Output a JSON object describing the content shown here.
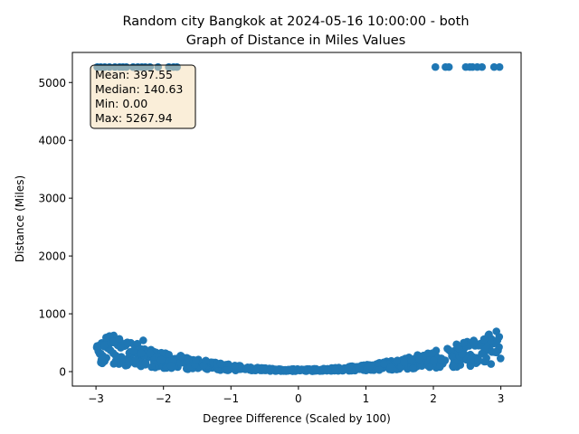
{
  "chart_data": {
    "type": "scatter",
    "title_line1": "Random city Bangkok at 2024-05-16 10:00:00  - both",
    "title_line2": "Graph of Distance in Miles Values",
    "xlabel": "Degree Difference (Scaled by 100)",
    "ylabel": "Distance (Miles)",
    "xlim": [
      -3.35,
      3.3
    ],
    "ylim": [
      -250,
      5520
    ],
    "xticks": [
      -3,
      -2,
      -1,
      0,
      1,
      2,
      3
    ],
    "xtick_labels": [
      "−3",
      "−2",
      "−1",
      "0",
      "1",
      "2",
      "3"
    ],
    "yticks": [
      0,
      1000,
      2000,
      3000,
      4000,
      5000
    ],
    "ytick_labels": [
      "0",
      "1000",
      "2000",
      "3000",
      "4000",
      "5000"
    ],
    "point_color": "#1f77b4",
    "stats_box": {
      "mean": "Mean: 397.55",
      "median": "Median: 140.63",
      "min": "Min: 0.00",
      "max": "Max: 5267.94",
      "facecolor": "#f5deb3",
      "edgecolor": "#000000"
    },
    "outliers": {
      "y": 5267.94,
      "x": [
        -2.98,
        -2.93,
        -2.87,
        -2.8,
        -2.72,
        -2.65,
        -2.6,
        -2.55,
        -2.45,
        -2.38,
        -2.32,
        -2.27,
        -2.2,
        -2.08,
        -1.92,
        -1.85,
        -1.8,
        2.03,
        2.18,
        2.23,
        2.48,
        2.54,
        2.58,
        2.65,
        2.72,
        2.9,
        2.98
      ]
    },
    "main_band": {
      "x_range": [
        -3.0,
        3.0
      ],
      "count": 700,
      "trend": "distance roughly 30 + 52*x^2 miles with scatter, minimum near x=0",
      "peak_values": [
        [
          -2.85,
          590
        ],
        [
          -2.3,
          540
        ],
        [
          2.75,
          560
        ],
        [
          2.95,
          540
        ],
        [
          2.45,
          500
        ]
      ]
    }
  }
}
